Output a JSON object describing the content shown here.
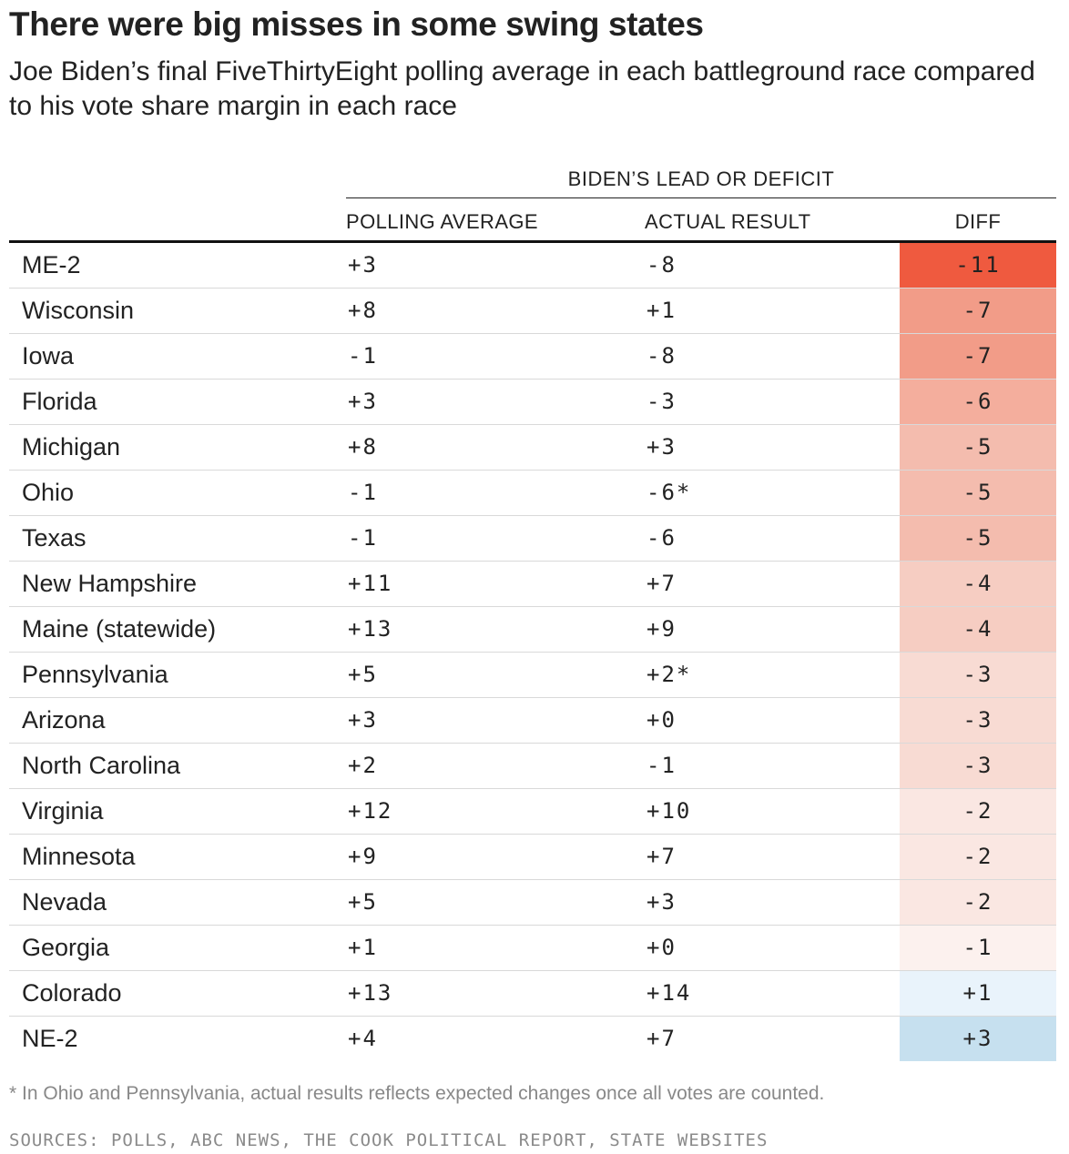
{
  "chart_data": {
    "type": "table",
    "title": "There were big misses in some swing states",
    "subtitle": "Joe Biden’s final FiveThirtyEight polling average in each battleground race compared to his vote share margin in each race",
    "group_header": "BIDEN’S LEAD OR DEFICIT",
    "columns": [
      "POLLING AVERAGE",
      "ACTUAL RESULT",
      "DIFF"
    ],
    "rows": [
      {
        "state": "ME-2",
        "poll": "+3",
        "result": "-8",
        "diff": "-11",
        "diff_value": -11
      },
      {
        "state": "Wisconsin",
        "poll": "+8",
        "result": "+1",
        "diff": "-7",
        "diff_value": -7
      },
      {
        "state": "Iowa",
        "poll": "-1",
        "result": "-8",
        "diff": "-7",
        "diff_value": -7
      },
      {
        "state": "Florida",
        "poll": "+3",
        "result": "-3",
        "diff": "-6",
        "diff_value": -6
      },
      {
        "state": "Michigan",
        "poll": "+8",
        "result": "+3",
        "diff": "-5",
        "diff_value": -5
      },
      {
        "state": "Ohio",
        "poll": "-1",
        "result": "-6*",
        "diff": "-5",
        "diff_value": -5
      },
      {
        "state": "Texas",
        "poll": "-1",
        "result": "-6",
        "diff": "-5",
        "diff_value": -5
      },
      {
        "state": "New Hampshire",
        "poll": "+11",
        "result": "+7",
        "diff": "-4",
        "diff_value": -4
      },
      {
        "state": "Maine (statewide)",
        "poll": "+13",
        "result": "+9",
        "diff": "-4",
        "diff_value": -4
      },
      {
        "state": "Pennsylvania",
        "poll": "+5",
        "result": "+2*",
        "diff": "-3",
        "diff_value": -3
      },
      {
        "state": "Arizona",
        "poll": "+3",
        "result": "+0",
        "diff": "-3",
        "diff_value": -3
      },
      {
        "state": "North Carolina",
        "poll": "+2",
        "result": "-1",
        "diff": "-3",
        "diff_value": -3
      },
      {
        "state": "Virginia",
        "poll": "+12",
        "result": "+10",
        "diff": "-2",
        "diff_value": -2
      },
      {
        "state": "Minnesota",
        "poll": "+9",
        "result": "+7",
        "diff": "-2",
        "diff_value": -2
      },
      {
        "state": "Nevada",
        "poll": "+5",
        "result": "+3",
        "diff": "-2",
        "diff_value": -2
      },
      {
        "state": "Georgia",
        "poll": "+1",
        "result": "+0",
        "diff": "-1",
        "diff_value": -1
      },
      {
        "state": "Colorado",
        "poll": "+13",
        "result": "+14",
        "diff": "+1",
        "diff_value": 1
      },
      {
        "state": "NE-2",
        "poll": "+4",
        "result": "+7",
        "diff": "+3",
        "diff_value": 3
      }
    ],
    "diff_colors": {
      "-11": "#ef5a3f",
      "-7": "#f29c88",
      "-6": "#f4ae9d",
      "-5": "#f4bcae",
      "-4": "#f6cdc2",
      "-3": "#f8dbd3",
      "-2": "#fae7e2",
      "-1": "#fcf1ee",
      "1": "#e9f3fb",
      "3": "#c6e0ef"
    },
    "footnote": "* In Ohio and Pennsylvania, actual results reflects expected changes once all votes are counted.",
    "sources": "SOURCES: POLLS, ABC NEWS, THE COOK POLITICAL REPORT, STATE WEBSITES"
  }
}
